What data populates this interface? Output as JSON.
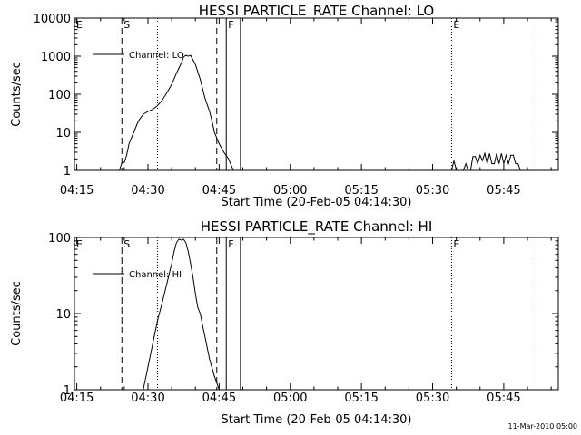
{
  "chart_data": [
    {
      "type": "line",
      "title": "HESSI PARTICLE_RATE Channel: LO",
      "xlabel": "Start Time (20-Feb-05 04:14:30)",
      "ylabel": "Counts/sec",
      "yscale": "log",
      "ylim": [
        1,
        10000
      ],
      "xlim": [
        "04:14:30",
        "05:56:30"
      ],
      "x_tick_labels": [
        "04:15",
        "04:30",
        "04:45",
        "05:00",
        "05:15",
        "05:30",
        "05:45"
      ],
      "y_tick_labels": [
        "1",
        "10",
        "100",
        "1000",
        "10000"
      ],
      "legend_entries": [
        "Channel: LO"
      ],
      "legend_position": "top-left",
      "markers": [
        {
          "label": "E",
          "time": "04:14:30",
          "style": "none"
        },
        {
          "label": "S",
          "time": "04:24:30",
          "style": "dashed"
        },
        {
          "label": "",
          "time": "04:32:00",
          "style": "dotted"
        },
        {
          "label": "",
          "time": "04:44:30",
          "style": "dashed"
        },
        {
          "label": "F",
          "time": "04:46:30",
          "style": "solid"
        },
        {
          "label": "",
          "time": "04:49:30",
          "style": "solid"
        },
        {
          "label": "E",
          "time": "05:34:00",
          "style": "dotted"
        },
        {
          "label": "",
          "time": "05:52:00",
          "style": "dotted"
        }
      ],
      "series": [
        {
          "name": "Channel: LO",
          "segments": [
            {
              "x": [
                "04:24:00",
                "04:24:30",
                "04:25:00",
                "04:25:30",
                "04:26:00",
                "04:27:00",
                "04:28:00",
                "04:29:00",
                "04:30:00",
                "04:31:00",
                "04:32:00",
                "04:33:00",
                "04:34:00",
                "04:35:00",
                "04:36:00",
                "04:37:00",
                "04:37:30",
                "04:38:00",
                "04:38:30",
                "04:39:00",
                "04:40:00",
                "04:41:00",
                "04:42:00",
                "04:43:00",
                "04:43:30",
                "04:44:00",
                "04:45:00",
                "04:46:00",
                "04:47:00",
                "04:48:00"
              ],
              "y": [
                1,
                1.6,
                1.6,
                2.5,
                5,
                10,
                20,
                30,
                35,
                40,
                50,
                70,
                110,
                180,
                350,
                650,
                950,
                1050,
                1000,
                1050,
                600,
                250,
                80,
                35,
                20,
                10,
                5,
                3,
                2,
                1
              ]
            },
            {
              "x": [
                "05:34:00",
                "05:34:30",
                "05:35:00"
              ],
              "y": [
                1,
                1.8,
                1
              ]
            },
            {
              "x": [
                "05:36:30",
                "05:37:00",
                "05:37:30"
              ],
              "y": [
                1,
                1.5,
                1
              ]
            },
            {
              "x": [
                "05:38:00",
                "05:38:30",
                "05:39:00",
                "05:39:30",
                "05:40:00",
                "05:40:30",
                "05:41:00",
                "05:41:30",
                "05:42:00",
                "05:42:30",
                "05:43:00",
                "05:43:30",
                "05:44:00",
                "05:44:30",
                "05:45:00",
                "05:45:30",
                "05:46:00",
                "05:46:30",
                "05:47:00",
                "05:47:30",
                "05:48:00",
                "05:48:30"
              ],
              "y": [
                1,
                2.3,
                2.3,
                1.5,
                2.5,
                1.8,
                2.8,
                1.5,
                2.8,
                1.5,
                1.5,
                2.8,
                1.5,
                2.8,
                1.5,
                2.5,
                1.5,
                2.5,
                2.5,
                1.5,
                1.5,
                1
              ]
            }
          ]
        }
      ]
    },
    {
      "type": "line",
      "title": "HESSI PARTICLE_RATE Channel: HI",
      "xlabel": "Start Time (20-Feb-05 04:14:30)",
      "ylabel": "Counts/sec",
      "yscale": "log",
      "ylim": [
        1,
        100
      ],
      "xlim": [
        "04:14:30",
        "05:56:30"
      ],
      "x_tick_labels": [
        "04:15",
        "04:30",
        "04:45",
        "05:00",
        "05:15",
        "05:30",
        "05:45"
      ],
      "y_tick_labels": [
        "1",
        "10",
        "100"
      ],
      "legend_entries": [
        "Channel: HI"
      ],
      "legend_position": "top-left",
      "markers": [
        {
          "label": "E",
          "time": "04:14:30",
          "style": "none"
        },
        {
          "label": "S",
          "time": "04:24:30",
          "style": "dashed"
        },
        {
          "label": "",
          "time": "04:32:00",
          "style": "dotted"
        },
        {
          "label": "",
          "time": "04:44:30",
          "style": "dashed"
        },
        {
          "label": "F",
          "time": "04:46:30",
          "style": "solid"
        },
        {
          "label": "",
          "time": "04:49:30",
          "style": "solid"
        },
        {
          "label": "E",
          "time": "05:34:00",
          "style": "dotted"
        },
        {
          "label": "",
          "time": "05:52:00",
          "style": "dotted"
        }
      ],
      "series": [
        {
          "name": "Channel: HI",
          "segments": [
            {
              "x": [
                "04:29:00",
                "04:30:00",
                "04:31:00",
                "04:32:00",
                "04:33:00",
                "04:34:00",
                "04:35:00",
                "04:35:30",
                "04:36:00",
                "04:36:30",
                "04:37:00",
                "04:37:30",
                "04:38:00",
                "04:38:30",
                "04:39:00",
                "04:39:30",
                "04:40:00",
                "04:40:30",
                "04:41:00",
                "04:42:00",
                "04:43:00",
                "04:44:00",
                "04:45:00"
              ],
              "y": [
                1,
                2,
                4,
                8,
                14,
                25,
                45,
                65,
                85,
                95,
                92,
                95,
                85,
                65,
                45,
                30,
                18,
                12,
                10,
                5,
                2.5,
                1.5,
                1
              ]
            }
          ]
        }
      ]
    }
  ],
  "footer": {
    "timestamp": "11-Mar-2010 05:00"
  }
}
